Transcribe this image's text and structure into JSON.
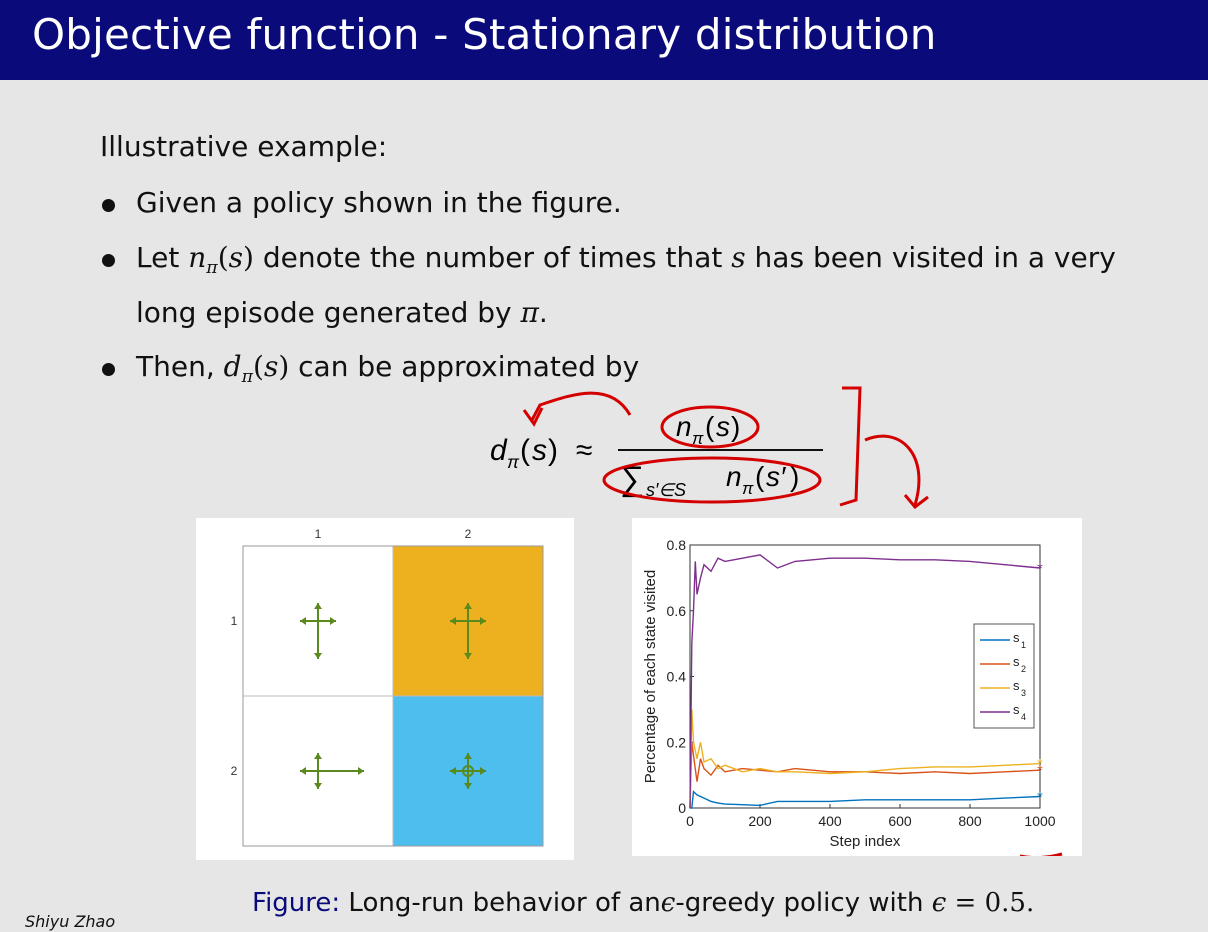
{
  "slide": {
    "title": "Objective function - Stationary distribution",
    "intro": "Illustrative example:",
    "bullet1": "Given a policy shown in the figure.",
    "bullet2_pre": "Let",
    "bullet2_mid": "denote the number of times that",
    "bullet2_post": "has been visited in a very",
    "bullet2_line2_pre": "long episode generated by",
    "bullet3_pre": "Then,",
    "bullet3_post": "can be approximated by",
    "caption_label": "Figure:",
    "caption_text": "Long-run behavior of an",
    "caption_text2": "-greedy policy with",
    "caption_math": "= 0.5.",
    "author": "Shiyu Zhao"
  },
  "grid": {
    "col_labels": [
      "1",
      "2"
    ],
    "row_labels": [
      "1",
      "2"
    ],
    "cells": [
      {
        "row": 1,
        "col": 1,
        "color": "#ffffff",
        "arrows": [
          "up",
          "down",
          "left",
          "right"
        ],
        "long": "down"
      },
      {
        "row": 1,
        "col": 2,
        "color": "#edb120",
        "arrows": [
          "up",
          "down",
          "left",
          "right"
        ],
        "long": "down"
      },
      {
        "row": 2,
        "col": 1,
        "color": "#ffffff",
        "arrows": [
          "up",
          "down",
          "left",
          "right"
        ],
        "long": "right"
      },
      {
        "row": 2,
        "col": 2,
        "color": "#4dbeee",
        "arrows": [
          "up",
          "down",
          "left",
          "right"
        ],
        "long": "stay"
      }
    ],
    "arrow_color": "#5a8a1e"
  },
  "chart_data": {
    "type": "line",
    "xlabel": "Step index",
    "ylabel": "Percentage of each state visited",
    "xlim": [
      0,
      1000
    ],
    "ylim": [
      0,
      0.8
    ],
    "xticks": [
      "0",
      "200",
      "400",
      "600",
      "800",
      "1000"
    ],
    "yticks": [
      "0",
      "0.2",
      "0.4",
      "0.6",
      "0.8"
    ],
    "legend_position": "right",
    "series": [
      {
        "name": "s1",
        "sub": "1",
        "color": "#0072bd",
        "x": [
          0,
          5,
          10,
          20,
          40,
          60,
          80,
          100,
          150,
          200,
          250,
          300,
          400,
          500,
          600,
          700,
          800,
          900,
          1000
        ],
        "y": [
          0.0,
          0.0,
          0.05,
          0.04,
          0.03,
          0.02,
          0.015,
          0.012,
          0.01,
          0.008,
          0.02,
          0.02,
          0.02,
          0.025,
          0.025,
          0.025,
          0.025,
          0.03,
          0.035
        ]
      },
      {
        "name": "s2",
        "sub": "2",
        "color": "#d95319",
        "x": [
          0,
          5,
          10,
          20,
          30,
          40,
          60,
          80,
          100,
          150,
          200,
          250,
          300,
          400,
          500,
          600,
          700,
          800,
          900,
          1000
        ],
        "y": [
          0.0,
          0.2,
          0.16,
          0.08,
          0.15,
          0.12,
          0.1,
          0.13,
          0.11,
          0.12,
          0.115,
          0.11,
          0.12,
          0.11,
          0.11,
          0.105,
          0.11,
          0.105,
          0.11,
          0.115
        ]
      },
      {
        "name": "s3",
        "sub": "3",
        "color": "#edb120",
        "x": [
          0,
          5,
          10,
          20,
          30,
          40,
          60,
          80,
          100,
          150,
          200,
          250,
          300,
          400,
          500,
          600,
          700,
          800,
          900,
          1000
        ],
        "y": [
          0.0,
          0.3,
          0.2,
          0.15,
          0.2,
          0.14,
          0.15,
          0.12,
          0.13,
          0.11,
          0.12,
          0.11,
          0.11,
          0.105,
          0.11,
          0.12,
          0.125,
          0.125,
          0.13,
          0.135
        ]
      },
      {
        "name": "s4",
        "sub": "4",
        "color": "#7e2f8e",
        "x": [
          0,
          5,
          10,
          15,
          20,
          30,
          40,
          60,
          80,
          100,
          150,
          200,
          250,
          300,
          400,
          500,
          600,
          700,
          800,
          900,
          1000
        ],
        "y": [
          0.0,
          0.5,
          0.6,
          0.75,
          0.65,
          0.7,
          0.74,
          0.72,
          0.76,
          0.75,
          0.76,
          0.77,
          0.73,
          0.75,
          0.76,
          0.76,
          0.755,
          0.755,
          0.75,
          0.74,
          0.73
        ]
      }
    ]
  }
}
